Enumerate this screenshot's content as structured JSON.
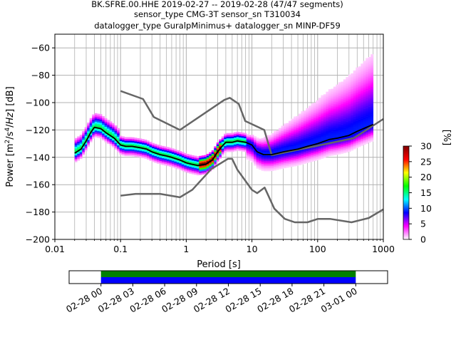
{
  "title": {
    "line1": "BK.SFRE.00.HHE   2019-02-27 -- 2019-02-28  (47/47 segments)",
    "line2": "sensor_type CMG-3T sensor_sn T310034",
    "line3": "datalogger_type GuralpMinimus+ datalogger_sn MINP-DF59"
  },
  "chart_data": [
    {
      "type": "heatmap",
      "subtype": "probabilistic-power-spectral-density",
      "xlabel": "Period [s]",
      "ylabel": "Power [m²/s⁴/Hz] [dB]",
      "xscale": "log",
      "xlim": [
        0.01,
        1000
      ],
      "ylim": [
        -200,
        -50
      ],
      "grid": true,
      "x_ticks": [
        0.01,
        0.1,
        1,
        10,
        100,
        1000
      ],
      "x_tick_labels": [
        "0.01",
        "0.1",
        "1",
        "10",
        "100",
        "1000"
      ],
      "y_ticks": [
        -200,
        -180,
        -160,
        -140,
        -120,
        -100,
        -80,
        -60
      ],
      "y_tick_labels": [
        "−200",
        "−180",
        "−160",
        "−140",
        "−120",
        "−100",
        "−80",
        "−60"
      ],
      "colorbar": {
        "label": "[%]",
        "min": 0,
        "max": 30,
        "ticks": [
          0,
          5,
          10,
          15,
          20,
          25,
          30
        ],
        "colors": [
          "#ffffff",
          "#ff00ff",
          "#0000ff",
          "#00ffff",
          "#00ff00",
          "#ffff00",
          "#ff0000",
          "#800000"
        ]
      },
      "series": [
        {
          "role": "mode",
          "color": "#000000",
          "x": [
            0.02,
            0.025,
            0.03,
            0.035,
            0.04,
            0.05,
            0.06,
            0.08,
            0.1,
            0.12,
            0.15,
            0.2,
            0.25,
            0.3,
            0.4,
            0.5,
            0.6,
            0.8,
            1,
            1.2,
            1.5,
            2,
            2.5,
            3,
            3.5,
            4,
            5,
            6,
            8,
            10,
            12,
            15,
            20,
            30,
            50,
            70,
            100,
            150,
            200,
            300,
            400,
            500,
            700
          ],
          "y": [
            -137,
            -134,
            -128,
            -122,
            -118,
            -119,
            -122,
            -126,
            -131,
            -132,
            -132,
            -133,
            -134,
            -136,
            -138,
            -139,
            -140,
            -142,
            -144,
            -145,
            -146,
            -145,
            -142,
            -136,
            -132,
            -129,
            -129,
            -128,
            -129,
            -131,
            -136,
            -138,
            -138,
            -136,
            -134,
            -132,
            -130,
            -127,
            -126,
            -124,
            -121,
            -119,
            -116
          ]
        },
        {
          "role": "new-high-noise-model",
          "color": "#666666",
          "x": [
            0.1,
            0.22,
            0.32,
            0.8,
            3.8,
            4.6,
            6.3,
            7.9,
            15.4,
            20,
            354.8,
            1000
          ],
          "y": [
            -91.5,
            -97.4,
            -110.5,
            -120,
            -98,
            -96.5,
            -101,
            -113.5,
            -120,
            -138.5,
            -126,
            -112
          ]
        },
        {
          "role": "new-low-noise-model",
          "color": "#666666",
          "x": [
            0.1,
            0.17,
            0.4,
            0.8,
            1.24,
            2.4,
            4.3,
            5,
            6,
            10,
            12,
            15.6,
            21.9,
            31.6,
            45,
            70,
            101,
            154,
            328,
            600,
            1000
          ],
          "y": [
            -168,
            -166.7,
            -166.7,
            -169.2,
            -163.7,
            -148.6,
            -141.1,
            -141.1,
            -149,
            -163.8,
            -166.2,
            -162.1,
            -177.5,
            -185,
            -187.5,
            -187.5,
            -185,
            -185,
            -187.5,
            -184.4,
            -178
          ]
        }
      ]
    },
    {
      "type": "timeline",
      "x_tick_labels": [
        "02-28 00",
        "02-28 03",
        "02-28 06",
        "02-28 09",
        "02-28 12",
        "02-28 15",
        "02-28 18",
        "02-28 21",
        "03-01 00"
      ],
      "xlim": [
        "2019-02-27 21:00",
        "2019-03-01 03:00"
      ],
      "coverage_start": "2019-02-28 00:00",
      "coverage_end": "2019-03-01 00:00",
      "bands": [
        {
          "role": "data-available",
          "color": "#008000"
        },
        {
          "role": "psd-segments-used",
          "color": "#0000ff"
        }
      ]
    }
  ]
}
